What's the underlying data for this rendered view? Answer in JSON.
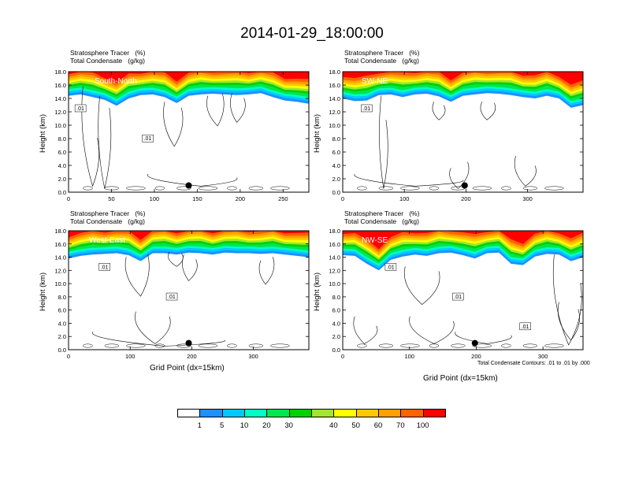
{
  "title": "2014-01-29_18:00:00",
  "panel_header": [
    "Stratosphere Tracer   (%)",
    "Total Condensate   (g/kg)"
  ],
  "y_axis_label": "Height (km)",
  "x_axis_label": "Grid Point (dx=15km)",
  "contour_note": "Total Condensate Contours: .01 to .01 by .000",
  "colorbar": {
    "labels": [
      "1",
      "5",
      "10",
      "20",
      "30",
      "40",
      "50",
      "60",
      "70",
      "100"
    ],
    "colors": [
      "#ffffff",
      "#1e90ff",
      "#00c8ff",
      "#00ffc8",
      "#00e650",
      "#00d200",
      "#a0e632",
      "#ffff00",
      "#ffc800",
      "#ffa000",
      "#ff6400",
      "#ff0000"
    ]
  },
  "chart_data": [
    {
      "type": "heatmap",
      "name": "South-North",
      "ylabel": "Height (km)",
      "ylim": [
        0,
        18
      ],
      "yticks": [
        "0.0",
        "2.0",
        "4.0",
        "6.0",
        "8.0",
        "10.0",
        "12.0",
        "14.0",
        "16.0",
        "18.0"
      ],
      "xlim": [
        0,
        280
      ],
      "xticks": [
        0,
        50,
        100,
        150,
        200,
        250
      ],
      "tracer_base_km": [
        14.4,
        14.6,
        14.2,
        13.8,
        12.9,
        14.0,
        14.5,
        14.6,
        14.2,
        13.3,
        14.4,
        14.6,
        14.7,
        14.6,
        14.5,
        14.6,
        14.8,
        14.2,
        13.7,
        13.5,
        13.2
      ],
      "contour_labels": [
        ".01",
        ".01"
      ],
      "marker": {
        "x": 140,
        "y": 1.0
      }
    },
    {
      "type": "heatmap",
      "name": "SW-NE",
      "ylabel": "Height (km)",
      "ylim": [
        0,
        18
      ],
      "yticks": [
        "0.0",
        "2.0",
        "4.0",
        "6.0",
        "8.0",
        "10.0",
        "12.0",
        "14.0",
        "16.0",
        "18.0"
      ],
      "xlim": [
        0,
        390
      ],
      "xticks": [
        0,
        100,
        200,
        300
      ],
      "tracer_base_km": [
        14.0,
        13.6,
        13.7,
        14.5,
        14.6,
        14.2,
        14.6,
        14.7,
        14.3,
        13.5,
        14.4,
        14.6,
        14.8,
        14.7,
        14.5,
        14.2,
        14.0,
        14.4,
        14.0,
        12.6,
        13.0
      ],
      "contour_labels": [
        ".01"
      ],
      "marker": {
        "x": 198,
        "y": 1.0
      }
    },
    {
      "type": "heatmap",
      "name": "West-East",
      "ylabel": "Height (km)",
      "ylim": [
        0,
        18
      ],
      "yticks": [
        "0.0",
        "2.0",
        "4.0",
        "6.0",
        "8.0",
        "10.0",
        "12.0",
        "14.0",
        "16.0",
        "18.0"
      ],
      "xlim": [
        0,
        390
      ],
      "xticks": [
        0,
        100,
        200,
        300
      ],
      "tracer_base_km": [
        13.8,
        14.2,
        14.4,
        14.5,
        14.6,
        14.3,
        13.4,
        14.6,
        14.6,
        14.4,
        14.7,
        14.6,
        14.4,
        14.7,
        14.6,
        14.6,
        14.5,
        14.6,
        14.4,
        14.2,
        14.0
      ],
      "contour_labels": [
        ".01",
        ".01"
      ],
      "marker": {
        "x": 195,
        "y": 1.0
      }
    },
    {
      "type": "heatmap",
      "name": "NW-SE",
      "ylabel": "Height (km)",
      "ylim": [
        0,
        18
      ],
      "yticks": [
        "0.0",
        "2.0",
        "4.0",
        "6.0",
        "8.0",
        "10.0",
        "12.0",
        "14.0",
        "16.0",
        "18.0"
      ],
      "xlim": [
        0,
        360
      ],
      "xticks": [
        0,
        100,
        200,
        300
      ],
      "tracer_base_km": [
        14.3,
        14.2,
        13.0,
        12.0,
        13.6,
        14.1,
        14.4,
        14.2,
        14.6,
        14.7,
        14.3,
        13.8,
        14.6,
        14.7,
        13.0,
        12.8,
        14.1,
        14.5,
        14.4,
        13.4,
        14.0
      ],
      "contour_labels": [
        ".01",
        ".01",
        ".01"
      ],
      "marker": {
        "x": 198,
        "y": 1.0
      }
    }
  ]
}
